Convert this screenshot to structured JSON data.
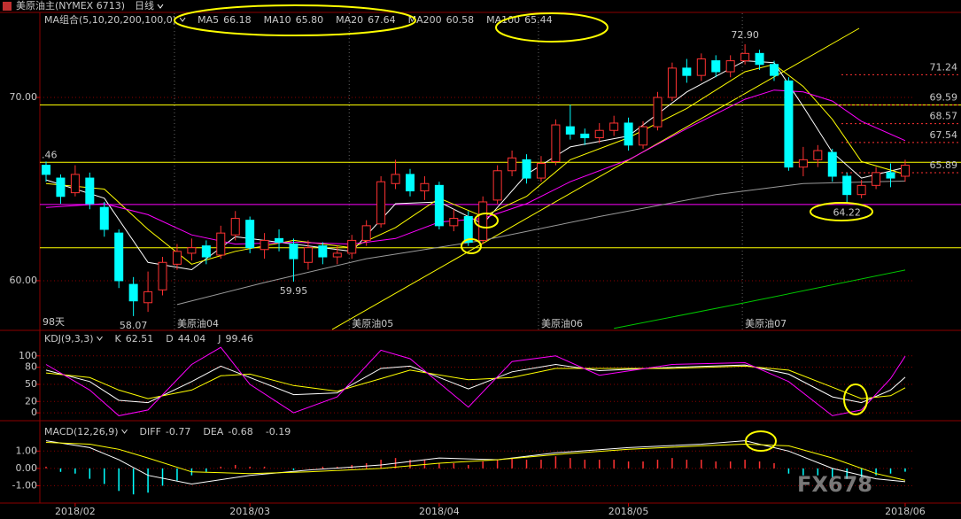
{
  "header": {
    "title": "美原油主(NYMEX 6713)",
    "period": "日线"
  },
  "watermark": "FX678",
  "chart_data": [
    {
      "type": "candlestick",
      "legend_title": "MA组合(5,10,20,200,100,0)",
      "note": "98天",
      "categories": [
        null,
        null,
        "2018/02",
        null,
        null,
        null,
        null,
        null,
        null,
        null,
        null,
        null,
        null,
        null,
        "2018/03",
        null,
        null,
        null,
        null,
        null,
        null,
        null,
        null,
        null,
        null,
        null,
        null,
        "2018/04",
        null,
        null,
        null,
        null,
        null,
        null,
        null,
        null,
        null,
        null,
        null,
        null,
        "2018/05",
        null,
        null,
        null,
        null,
        null,
        null,
        null,
        null,
        null,
        null,
        null,
        null,
        null,
        null,
        null,
        null,
        null,
        null,
        "2018/06"
      ],
      "contract_labels": [
        null,
        null,
        null,
        null,
        null,
        null,
        null,
        null,
        null,
        "美原油04",
        null,
        null,
        null,
        null,
        null,
        null,
        null,
        null,
        null,
        null,
        null,
        "美原油05",
        null,
        null,
        null,
        null,
        null,
        null,
        null,
        null,
        null,
        null,
        null,
        null,
        "美原油06",
        null,
        null,
        null,
        null,
        null,
        null,
        null,
        null,
        null,
        null,
        null,
        null,
        null,
        "美原油07",
        null,
        null,
        null,
        null,
        null,
        null,
        null,
        null,
        null,
        null,
        null
      ],
      "open": [
        66.3,
        65.6,
        64.8,
        65.6,
        64.0,
        62.6,
        59.8,
        58.8,
        59.5,
        60.9,
        61.5,
        61.9,
        61.4,
        62.5,
        63.3,
        61.7,
        62.3,
        62.0,
        61.0,
        61.9,
        61.3,
        61.5,
        62.2,
        63.1,
        65.3,
        65.8,
        64.9,
        65.2,
        63.0,
        63.5,
        62.2,
        64.4,
        66.0,
        66.6,
        65.6,
        66.5,
        68.4,
        68.0,
        67.8,
        68.2,
        68.6,
        67.4,
        68.4,
        70.0,
        71.6,
        71.2,
        72.0,
        71.4,
        72.0,
        72.4,
        71.8,
        70.9,
        66.2,
        66.6,
        67.0,
        65.7,
        64.7,
        65.2,
        65.9,
        65.7
      ],
      "high": [
        66.5,
        65.8,
        66.3,
        65.9,
        64.3,
        62.8,
        60.2,
        60.5,
        61.3,
        62.0,
        62.3,
        62.2,
        63.0,
        63.8,
        63.5,
        62.6,
        62.8,
        62.3,
        62.2,
        62.1,
        61.9,
        62.5,
        63.3,
        65.7,
        66.6,
        66.1,
        65.7,
        65.4,
        63.9,
        63.8,
        64.6,
        66.3,
        67.1,
        66.9,
        66.8,
        68.8,
        69.6,
        68.3,
        68.6,
        69.0,
        68.9,
        68.7,
        70.3,
        71.9,
        72.1,
        72.4,
        72.3,
        72.3,
        72.9,
        72.6,
        72.0,
        71.1,
        67.3,
        67.4,
        67.2,
        65.9,
        65.5,
        66.2,
        66.4,
        66.6
      ],
      "low": [
        65.4,
        64.2,
        64.6,
        63.9,
        62.4,
        59.6,
        58.07,
        58.3,
        59.2,
        60.6,
        61.1,
        60.9,
        61.2,
        62.2,
        61.5,
        61.2,
        61.6,
        59.95,
        60.6,
        60.9,
        60.9,
        61.2,
        61.9,
        62.9,
        65.0,
        64.6,
        64.4,
        62.8,
        62.7,
        61.9,
        62.0,
        64.2,
        65.7,
        65.3,
        65.4,
        66.3,
        67.7,
        67.4,
        67.5,
        67.9,
        67.1,
        67.2,
        68.2,
        69.8,
        70.8,
        70.9,
        71.1,
        71.1,
        71.8,
        71.5,
        70.9,
        66.0,
        65.7,
        66.2,
        65.4,
        64.22,
        64.5,
        65.0,
        65.1,
        65.4
      ],
      "close": [
        65.8,
        64.6,
        65.8,
        64.2,
        62.8,
        60.0,
        58.9,
        59.4,
        61.0,
        61.6,
        61.8,
        61.3,
        62.6,
        63.4,
        61.8,
        62.2,
        62.1,
        61.2,
        61.8,
        61.3,
        61.5,
        62.2,
        63.0,
        65.4,
        65.8,
        64.9,
        65.3,
        63.0,
        63.4,
        62.1,
        64.3,
        66.0,
        66.7,
        65.6,
        66.4,
        68.5,
        68.0,
        67.8,
        68.2,
        68.6,
        67.4,
        68.4,
        70.0,
        71.6,
        71.2,
        72.1,
        71.4,
        72.0,
        72.4,
        71.8,
        71.2,
        66.2,
        66.6,
        67.1,
        65.7,
        64.7,
        65.2,
        65.9,
        65.6,
        66.3
      ],
      "up_color": "#ff3232",
      "down_color": "#00ffff",
      "ylim": [
        57.34,
        74.59
      ],
      "yticks": [
        {
          "value": 60,
          "label": "60.00"
        },
        {
          "value": 70,
          "label": "70.00"
        }
      ],
      "series": [
        {
          "name": "MA5",
          "color": "#ffffff",
          "legend_value": "66.18",
          "x": [
            0,
            4,
            7,
            10,
            13,
            17,
            21,
            24,
            27,
            30,
            33,
            36,
            40,
            44,
            48,
            50,
            52,
            54,
            56,
            59
          ],
          "values": [
            65.5,
            64.5,
            61.0,
            60.6,
            62.4,
            62.0,
            61.6,
            64.2,
            64.3,
            63.1,
            65.8,
            67.3,
            67.9,
            70.3,
            72.0,
            71.9,
            69.5,
            67.0,
            65.6,
            66.18
          ]
        },
        {
          "name": "MA10",
          "color": "#ffff00",
          "legend_value": "65.80",
          "x": [
            0,
            4,
            7,
            10,
            13,
            17,
            21,
            24,
            27,
            30,
            33,
            36,
            40,
            44,
            48,
            50,
            52,
            54,
            56,
            59
          ],
          "values": [
            65.3,
            65.0,
            62.8,
            60.9,
            61.6,
            62.2,
            61.8,
            62.9,
            64.5,
            63.5,
            64.6,
            66.6,
            67.8,
            69.4,
            71.4,
            71.8,
            70.6,
            68.8,
            66.5,
            65.8
          ]
        },
        {
          "name": "MA20",
          "color": "#ff00ff",
          "legend_value": "67.64",
          "x": [
            0,
            4,
            7,
            10,
            13,
            17,
            21,
            24,
            27,
            30,
            33,
            36,
            40,
            44,
            48,
            50,
            52,
            54,
            56,
            59
          ],
          "values": [
            64.0,
            64.2,
            63.6,
            62.5,
            62.0,
            62.1,
            62.0,
            62.3,
            63.2,
            63.4,
            64.2,
            65.4,
            66.6,
            68.3,
            69.9,
            70.4,
            70.3,
            69.8,
            68.7,
            67.64
          ]
        },
        {
          "name": "MA200",
          "color": "#00c800",
          "legend_value": "60.58",
          "x": [
            39,
            48,
            59
          ],
          "values": [
            57.4,
            58.8,
            60.58
          ]
        },
        {
          "name": "MA100",
          "color": "#9a9a9a",
          "legend_value": "65.44",
          "x": [
            9,
            15,
            22,
            30,
            38,
            46,
            52,
            59
          ],
          "values": [
            58.7,
            59.9,
            61.2,
            62.2,
            63.5,
            64.7,
            65.3,
            65.44
          ]
        }
      ],
      "levels": [
        71.24,
        69.59,
        68.57,
        67.54,
        65.89
      ],
      "hlines": [
        {
          "value": 69.59,
          "color": "#ffff00"
        },
        {
          "value": 66.46,
          "label": ".46",
          "color": "#ffff00"
        },
        {
          "value": 64.16,
          "color": "#ff00ff"
        },
        {
          "value": 61.8,
          "color": "#ffff00"
        }
      ],
      "annotations": [
        {
          "value": 72.9,
          "label": "72.90"
        },
        {
          "value": 58.07,
          "label": "58.07"
        },
        {
          "value": 59.95,
          "label": "59.95"
        },
        {
          "value": 64.22,
          "label": "64.22"
        }
      ]
    },
    {
      "type": "line",
      "legend_title": "KDJ(9,3,3)",
      "ylim": [
        -6,
        137
      ],
      "yticks": [
        0,
        20,
        50,
        80,
        100
      ],
      "series": [
        {
          "name": "K",
          "color": "#ffffff",
          "legend_value": "62.51",
          "x": [
            0,
            3,
            5,
            7,
            10,
            12,
            14,
            17,
            20,
            23,
            25,
            29,
            32,
            35,
            38,
            43,
            48,
            51,
            54,
            56,
            58,
            59
          ],
          "values": [
            75,
            55,
            22,
            18,
            55,
            82,
            62,
            32,
            35,
            78,
            82,
            42,
            72,
            85,
            74,
            80,
            84,
            68,
            28,
            18,
            40,
            62.51
          ]
        },
        {
          "name": "D",
          "color": "#ffff00",
          "legend_value": "44.04",
          "x": [
            0,
            3,
            5,
            7,
            10,
            12,
            14,
            17,
            20,
            23,
            25,
            29,
            32,
            35,
            38,
            43,
            48,
            51,
            54,
            56,
            58,
            59
          ],
          "values": [
            70,
            62,
            40,
            25,
            40,
            65,
            68,
            48,
            38,
            60,
            75,
            58,
            62,
            78,
            78,
            78,
            82,
            75,
            45,
            25,
            30,
            44.04
          ]
        },
        {
          "name": "J",
          "color": "#ff00ff",
          "legend_value": "99.46",
          "x": [
            0,
            3,
            5,
            7,
            10,
            12,
            14,
            17,
            20,
            23,
            25,
            29,
            32,
            35,
            38,
            43,
            48,
            51,
            54,
            56,
            58,
            59
          ],
          "values": [
            85,
            40,
            -5,
            5,
            85,
            115,
            50,
            0,
            28,
            110,
            95,
            10,
            90,
            100,
            66,
            85,
            88,
            55,
            -5,
            5,
            60,
            99.46
          ]
        }
      ]
    },
    {
      "type": "macd",
      "legend_title": "MACD(12,26,9)",
      "ylim": [
        -2,
        2.6
      ],
      "yticks": [
        {
          "value": -1,
          "label": "-1.00"
        },
        {
          "value": 0,
          "label": "0.00"
        },
        {
          "value": 1,
          "label": "1.00"
        }
      ],
      "series": [
        {
          "name": "DIFF",
          "color": "#ffffff",
          "legend_value": "-0.77",
          "x": [
            0,
            3,
            5,
            7,
            10,
            14,
            18,
            23,
            27,
            31,
            35,
            40,
            45,
            48,
            51,
            54,
            57,
            59
          ],
          "values": [
            1.6,
            1.2,
            0.5,
            -0.4,
            -0.9,
            -0.4,
            -0.1,
            0.2,
            0.6,
            0.5,
            0.9,
            1.2,
            1.4,
            1.6,
            1.0,
            0.0,
            -0.6,
            -0.77
          ]
        },
        {
          "name": "DEA",
          "color": "#ffff00",
          "legend_value": "-0.68",
          "x": [
            0,
            3,
            5,
            7,
            10,
            14,
            18,
            23,
            27,
            31,
            35,
            40,
            45,
            48,
            51,
            54,
            57,
            59
          ],
          "values": [
            1.5,
            1.4,
            1.1,
            0.6,
            -0.2,
            -0.3,
            -0.2,
            0.0,
            0.3,
            0.5,
            0.8,
            1.1,
            1.3,
            1.4,
            1.3,
            0.6,
            -0.3,
            -0.68
          ]
        }
      ],
      "histogram": {
        "legend_value": "-0.19",
        "up_color": "#ff3232",
        "down_color": "#00ffff",
        "values": [
          0.1,
          -0.2,
          -0.3,
          -0.6,
          -0.9,
          -1.3,
          -1.5,
          -1.4,
          -1.0,
          -0.7,
          -0.4,
          -0.2,
          0.1,
          0.2,
          0.1,
          0.1,
          0.0,
          -0.1,
          0.0,
          0.1,
          0.1,
          0.2,
          0.3,
          0.5,
          0.6,
          0.5,
          0.5,
          0.3,
          0.3,
          0.2,
          0.4,
          0.5,
          0.6,
          0.5,
          0.5,
          0.7,
          0.6,
          0.5,
          0.5,
          0.5,
          0.4,
          0.4,
          0.5,
          0.6,
          0.5,
          0.5,
          0.4,
          0.4,
          0.5,
          0.4,
          0.3,
          -0.3,
          -0.4,
          -0.4,
          -0.5,
          -0.6,
          -0.5,
          -0.4,
          -0.3,
          -0.19
        ]
      }
    }
  ]
}
